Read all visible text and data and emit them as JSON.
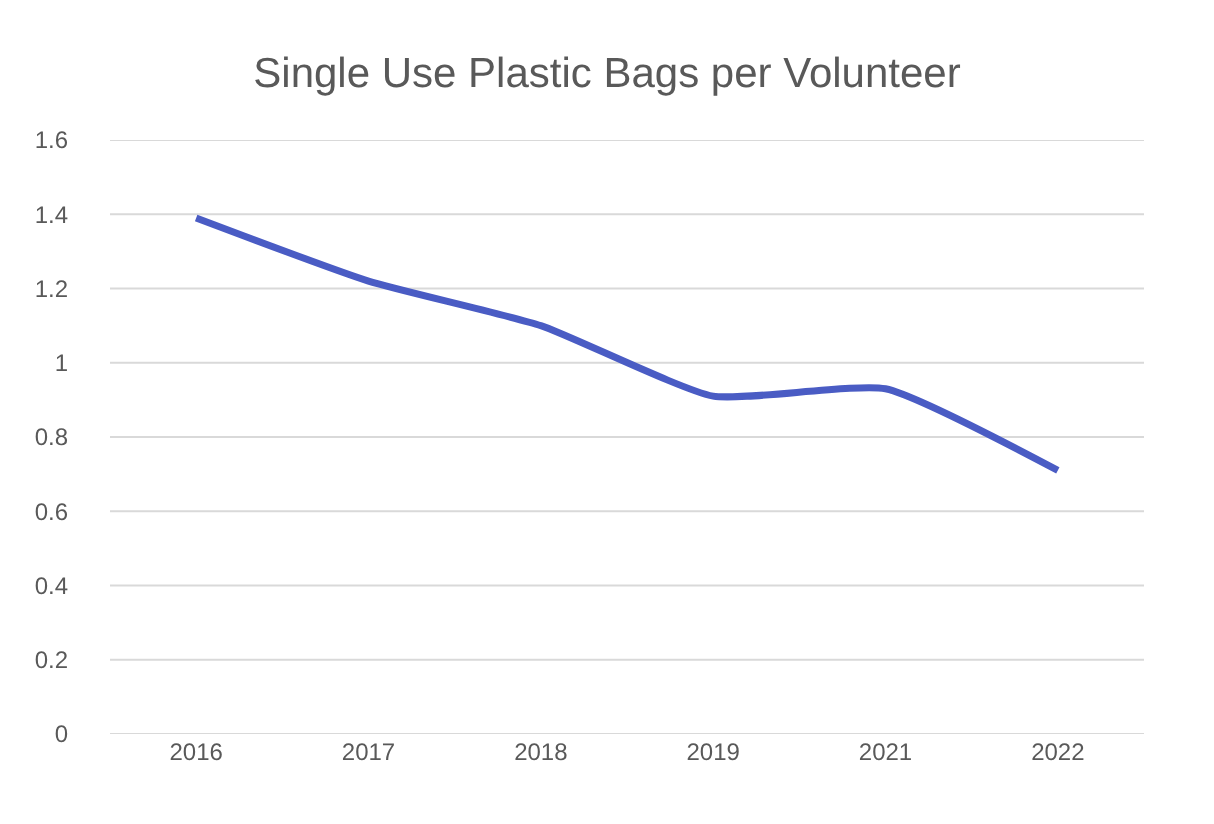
{
  "chart_data": {
    "type": "line",
    "title": "Single Use Plastic Bags per Volunteer",
    "categories": [
      "2016",
      "2017",
      "2018",
      "2019",
      "2021",
      "2022"
    ],
    "values": [
      1.39,
      1.22,
      1.1,
      0.91,
      0.93,
      0.71
    ],
    "color": "#4a5cc4",
    "ylim": [
      0,
      1.6
    ],
    "yticks": [
      0,
      0.2,
      0.4,
      0.6,
      0.8,
      {
        "value": 1,
        "label": "1"
      },
      1.2,
      1.4,
      1.6
    ],
    "grid": "y",
    "marker": "none",
    "line_style": "solid"
  }
}
